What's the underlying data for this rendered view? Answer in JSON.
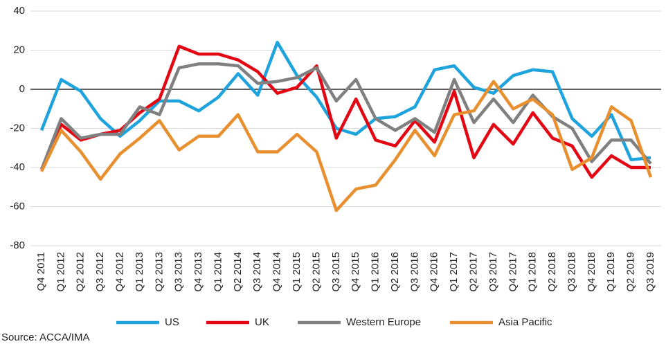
{
  "chart_data": {
    "type": "line",
    "categories": [
      "Q4 2011",
      "Q1 2012",
      "Q2 2012",
      "Q3 2012",
      "Q4 2012",
      "Q1 2013",
      "Q2 2013",
      "Q3 2013",
      "Q4 2013",
      "Q1 2014",
      "Q2 2014",
      "Q3 2014",
      "Q4 2014",
      "Q1 2015",
      "Q2 2015",
      "Q3 2015",
      "Q4 2015",
      "Q1 2016",
      "Q2 2016",
      "Q3 2016",
      "Q4 2016",
      "Q1 2017",
      "Q2 2017",
      "Q3 2017",
      "Q4 2017",
      "Q1 2018",
      "Q2 2018",
      "Q3 2018",
      "Q4 2018",
      "Q1 2019",
      "Q2 2019",
      "Q3 2019"
    ],
    "category_colors": [
      "#e30613",
      "#222",
      "#222",
      "#222",
      "#222",
      "#222",
      "#222",
      "#222",
      "#222",
      "#222",
      "#222",
      "#222",
      "#222",
      "#222",
      "#222",
      "#e30613",
      "#222",
      "#222",
      "#222",
      "#222",
      "#222",
      "#e30613",
      "#222",
      "#222",
      "#222",
      "#222",
      "#222",
      "#222",
      "#222",
      "#e30613",
      "#e30613",
      "#e30613"
    ],
    "series": [
      {
        "name": "US",
        "color": "#1fa3dc",
        "values": [
          -21,
          5,
          -1,
          -15,
          -24,
          -16,
          -6,
          -6,
          -11,
          -4,
          8,
          -3,
          24,
          7,
          -4,
          -20,
          -23,
          -15,
          -14,
          -9,
          10,
          12,
          1,
          -2,
          7,
          10,
          9,
          -15,
          -24,
          -13,
          -36,
          -35
        ]
      },
      {
        "name": "UK",
        "color": "#e30613",
        "values": [
          -41,
          -18,
          -26,
          -23,
          -21,
          -12,
          -5,
          22,
          18,
          18,
          15,
          9,
          -2,
          1,
          12,
          -25,
          -5,
          -26,
          -29,
          -16,
          -27,
          -1,
          -35,
          -18,
          -28,
          -12,
          -25,
          -29,
          -45,
          -34,
          -40,
          -40
        ]
      },
      {
        "name": "Western Europe",
        "color": "#808080",
        "values": [
          -41,
          -15,
          -25,
          -23,
          -23,
          -9,
          -13,
          11,
          13,
          13,
          12,
          3,
          4,
          6,
          11,
          -6,
          5,
          -15,
          -21,
          -15,
          -22,
          5,
          -17,
          -5,
          -17,
          -3,
          -14,
          -20,
          -37,
          -26,
          -26,
          -38
        ]
      },
      {
        "name": "Asia Pacific",
        "color": "#e8902f",
        "values": [
          -42,
          -21,
          -32,
          -46,
          -33,
          -25,
          -16,
          -31,
          -24,
          -24,
          -13,
          -32,
          -32,
          -23,
          -32,
          -62,
          -51,
          -49,
          -36,
          -21,
          -34,
          -13,
          -11,
          4,
          -10,
          -5,
          -13,
          -41,
          -35,
          -9,
          -16,
          -45
        ]
      }
    ],
    "ylim": [
      -80,
      40
    ],
    "yticks": [
      -80,
      -60,
      -40,
      -20,
      0,
      20,
      40
    ],
    "grid": true,
    "legend": "bottom",
    "source": "Source: ACCA/IMA"
  }
}
